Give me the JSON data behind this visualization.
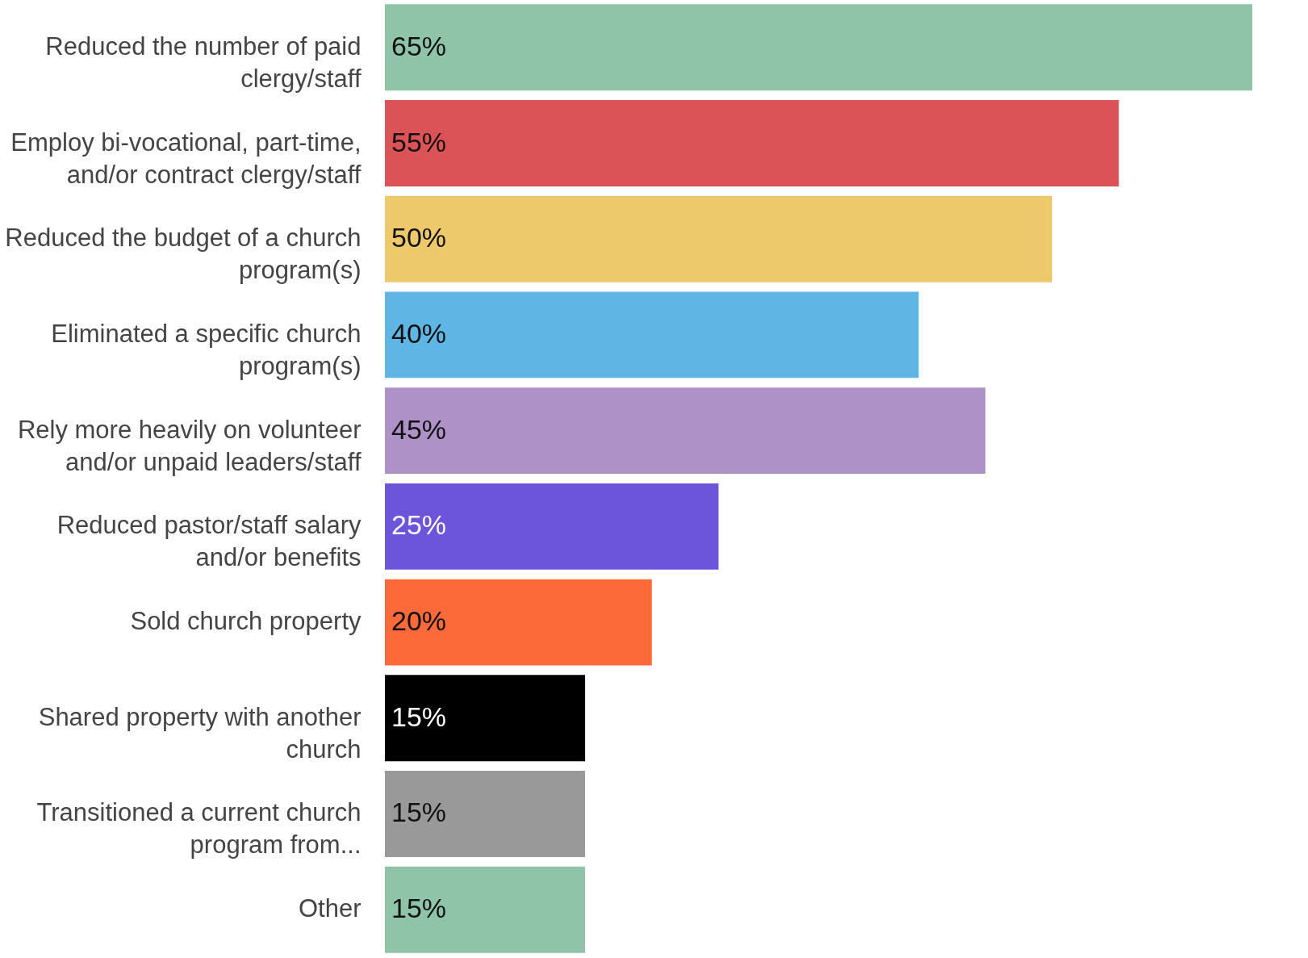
{
  "chart_data": {
    "type": "bar",
    "orientation": "horizontal",
    "categories": [
      "Reduced the number of paid clergy/staff",
      "Employ bi-vocational, part-time, and/or contract clergy/staff",
      "Reduced the budget of a church program(s)",
      "Eliminated a specific church program(s)",
      "Rely more heavily on volunteer and/or unpaid leaders/staff",
      "Reduced pastor/staff salary and/or benefits",
      "Sold church property",
      "Shared property with another church",
      "Transitioned a current church program from...",
      "Other"
    ],
    "values": [
      65,
      55,
      50,
      40,
      45,
      25,
      20,
      15,
      15,
      15
    ],
    "colors": [
      "#8fc4a8",
      "#db5257",
      "#edc96b",
      "#5fb5e3",
      "#ad91c7",
      "#6c54db",
      "#fd6a3a",
      "#000000",
      "#999999",
      "#8fc4a8"
    ],
    "value_labels": [
      "65%",
      "55%",
      "50%",
      "40%",
      "45%",
      "25%",
      "20%",
      "15%",
      "15%",
      "15%"
    ],
    "grid": false
  }
}
